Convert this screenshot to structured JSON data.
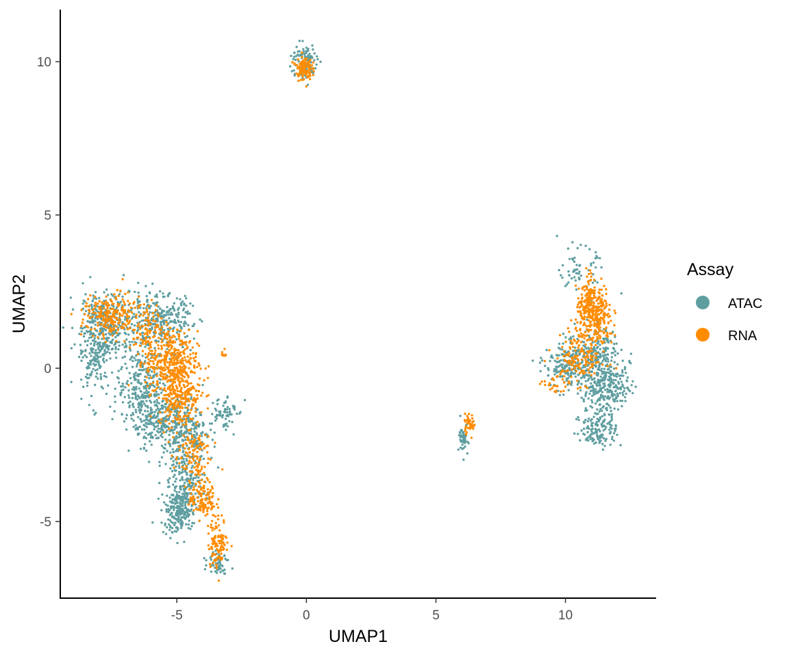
{
  "chart_data": {
    "type": "scatter",
    "xlabel": "UMAP1",
    "ylabel": "UMAP2",
    "xlim": [
      -9.5,
      13.5
    ],
    "ylim": [
      -7.5,
      11.7
    ],
    "xticks": [
      -5,
      0,
      5,
      10
    ],
    "yticks": [
      -5,
      0,
      5,
      10
    ],
    "x_tick_labels": [
      "-5",
      "0",
      "5",
      "10"
    ],
    "y_tick_labels": [
      "-5",
      "0",
      "5",
      "10"
    ],
    "grid": false,
    "legend": {
      "title": "Assay",
      "placement": "right",
      "entries": [
        "ATAC",
        "RNA"
      ]
    },
    "colors": {
      "ATAC": "#5F9EA0",
      "RNA": "#FF8C00"
    },
    "series": [
      {
        "name": "ATAC",
        "clusters": [
          {
            "cx": -7.6,
            "cy": 1.4,
            "sx": 0.55,
            "sy": 0.55,
            "n": 300
          },
          {
            "cx": -8.2,
            "cy": 0.6,
            "sx": 0.35,
            "sy": 0.8,
            "n": 180
          },
          {
            "cx": -5.6,
            "cy": 1.5,
            "sx": 0.6,
            "sy": 0.45,
            "n": 300
          },
          {
            "cx": -6.3,
            "cy": -0.6,
            "sx": 0.5,
            "sy": 0.6,
            "n": 250
          },
          {
            "cx": -5.6,
            "cy": -1.8,
            "sx": 0.6,
            "sy": 0.45,
            "n": 260
          },
          {
            "cx": -4.6,
            "cy": -2.2,
            "sx": 0.5,
            "sy": 0.5,
            "n": 200
          },
          {
            "cx": -4.6,
            "cy": -3.9,
            "sx": 0.35,
            "sy": 0.6,
            "n": 220
          },
          {
            "cx": -5.0,
            "cy": -4.7,
            "sx": 0.3,
            "sy": 0.35,
            "n": 160
          },
          {
            "cx": -3.4,
            "cy": -6.3,
            "sx": 0.2,
            "sy": 0.2,
            "n": 60
          },
          {
            "cx": -3.2,
            "cy": -1.4,
            "sx": 0.25,
            "sy": 0.3,
            "n": 60
          },
          {
            "cx": -0.1,
            "cy": 10.0,
            "sx": 0.25,
            "sy": 0.3,
            "n": 110
          },
          {
            "cx": 6.1,
            "cy": -2.3,
            "sx": 0.1,
            "sy": 0.25,
            "n": 50
          },
          {
            "cx": 10.5,
            "cy": 3.2,
            "sx": 0.35,
            "sy": 0.35,
            "n": 60
          },
          {
            "cx": 10.1,
            "cy": 0.1,
            "sx": 0.45,
            "sy": 0.4,
            "n": 200
          },
          {
            "cx": 11.3,
            "cy": 0.3,
            "sx": 0.45,
            "sy": 0.5,
            "n": 220
          },
          {
            "cx": 11.6,
            "cy": -0.6,
            "sx": 0.45,
            "sy": 0.35,
            "n": 200
          },
          {
            "cx": 11.3,
            "cy": -1.9,
            "sx": 0.35,
            "sy": 0.35,
            "n": 160
          }
        ]
      },
      {
        "name": "RNA",
        "clusters": [
          {
            "cx": -7.6,
            "cy": 1.7,
            "sx": 0.5,
            "sy": 0.35,
            "n": 200
          },
          {
            "cx": -5.2,
            "cy": 0.2,
            "sx": 0.5,
            "sy": 0.5,
            "n": 350
          },
          {
            "cx": -4.9,
            "cy": -0.9,
            "sx": 0.4,
            "sy": 0.5,
            "n": 250
          },
          {
            "cx": -6.2,
            "cy": 1.3,
            "sx": 0.45,
            "sy": 0.45,
            "n": 120
          },
          {
            "cx": -4.4,
            "cy": -2.8,
            "sx": 0.35,
            "sy": 0.5,
            "n": 120
          },
          {
            "cx": -4.0,
            "cy": -4.3,
            "sx": 0.25,
            "sy": 0.3,
            "n": 120
          },
          {
            "cx": -3.4,
            "cy": -5.7,
            "sx": 0.2,
            "sy": 0.4,
            "n": 110
          },
          {
            "cx": -3.2,
            "cy": 0.5,
            "sx": 0.05,
            "sy": 0.1,
            "n": 8
          },
          {
            "cx": -0.1,
            "cy": 9.8,
            "sx": 0.15,
            "sy": 0.2,
            "n": 120
          },
          {
            "cx": 6.3,
            "cy": -1.8,
            "sx": 0.12,
            "sy": 0.15,
            "n": 40
          },
          {
            "cx": 11.1,
            "cy": 1.7,
            "sx": 0.35,
            "sy": 0.45,
            "n": 300
          },
          {
            "cx": 10.9,
            "cy": 2.5,
            "sx": 0.2,
            "sy": 0.3,
            "n": 60
          },
          {
            "cx": 10.6,
            "cy": 0.3,
            "sx": 0.5,
            "sy": 0.4,
            "n": 150
          },
          {
            "cx": 9.6,
            "cy": -0.6,
            "sx": 0.25,
            "sy": 0.2,
            "n": 25
          }
        ]
      }
    ]
  }
}
